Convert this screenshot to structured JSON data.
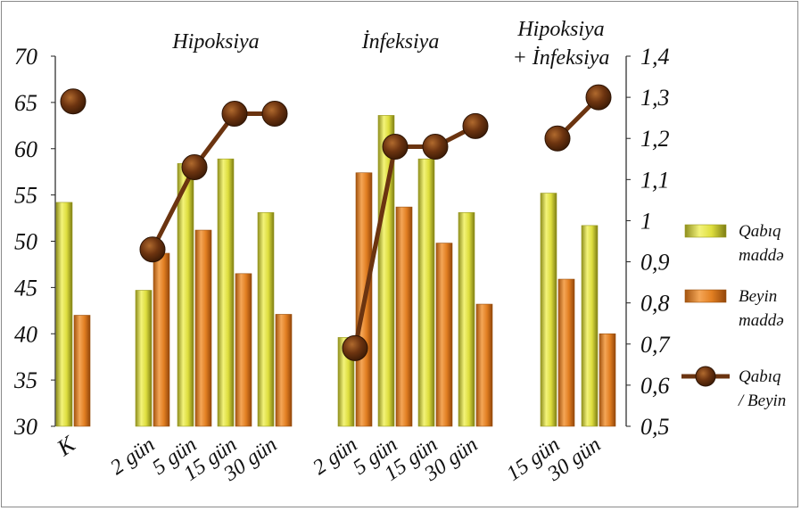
{
  "chart_data": {
    "type": "bar",
    "groups": [
      {
        "label": "",
        "categories": [
          "K"
        ]
      },
      {
        "label": "Hipoksiya",
        "categories": [
          "2 gün",
          "5 gün",
          "15 gün",
          "30 gün"
        ]
      },
      {
        "label": "İnfeksiya",
        "categories": [
          "2 gün",
          "5 gün",
          "15 gün",
          "30 gün"
        ]
      },
      {
        "label": "Hipoksiya\n+ İnfeksiya",
        "categories": [
          "15 gün",
          "30 gün"
        ]
      }
    ],
    "categories": [
      "K",
      "2 gün",
      "5 gün",
      "15 gün",
      "30 gün",
      "2 gün",
      "5 gün",
      "15 gün",
      "30 gün",
      "15 gün",
      "30 gün"
    ],
    "series": [
      {
        "name": "Qabıq maddə",
        "type": "bar",
        "axis": "left",
        "color": "#d8d84a",
        "values": [
          54.2,
          44.7,
          58.4,
          58.9,
          53.1,
          39.6,
          63.6,
          58.9,
          53.1,
          55.2,
          51.7
        ]
      },
      {
        "name": "Beyin maddə",
        "type": "bar",
        "axis": "left",
        "color": "#e08a2c",
        "values": [
          42.0,
          48.7,
          51.2,
          46.5,
          42.1,
          57.4,
          53.7,
          49.8,
          43.2,
          45.9,
          40.0
        ]
      },
      {
        "name": "Qabıq / Beyin",
        "type": "line",
        "axis": "right",
        "color": "#6b3410",
        "values": [
          1.29,
          0.93,
          1.13,
          1.26,
          1.26,
          0.69,
          1.18,
          1.18,
          1.23,
          1.2,
          1.3
        ]
      }
    ],
    "y_left": {
      "min": 30,
      "max": 70,
      "ticks": [
        "30",
        "35",
        "40",
        "45",
        "50",
        "55",
        "60",
        "65",
        "70"
      ]
    },
    "y_right": {
      "min": 0.5,
      "max": 1.4,
      "ticks": [
        "0,5",
        "0,6",
        "0,7",
        "0,8",
        "0,9",
        "1",
        "1,1",
        "1,2",
        "1,3",
        "1,4"
      ]
    },
    "legend": {
      "position": "right",
      "entries": [
        {
          "line1": "Qabıq",
          "line2": "maddə"
        },
        {
          "line1": "Beyin",
          "line2": "maddə"
        },
        {
          "line1": "Qabıq",
          "line2": "/ Beyin"
        }
      ]
    },
    "grid": false
  }
}
